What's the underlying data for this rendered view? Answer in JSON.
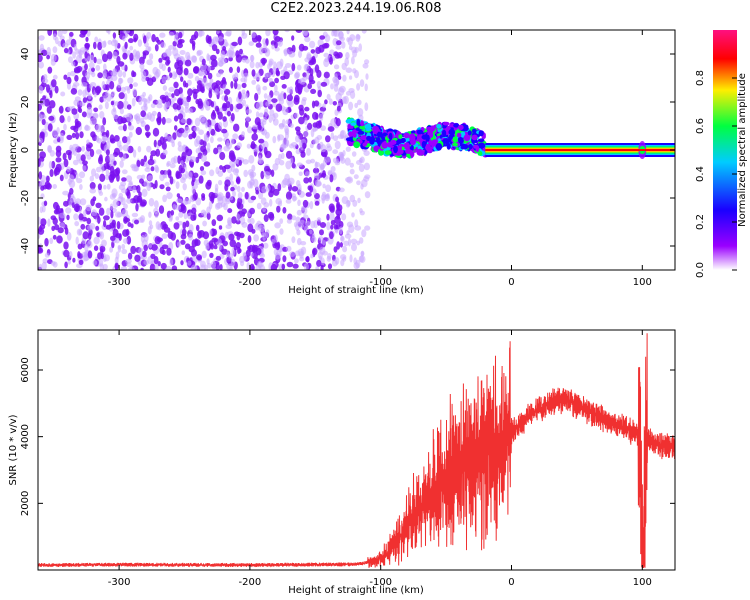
{
  "title": "C2E2.2023.244.19.06.R08",
  "chart_data": [
    {
      "type": "heatmap",
      "name": "spectrogram",
      "xlabel": "Height of straight line (km)",
      "ylabel": "Frequency (Hz)",
      "xlim": [
        -362,
        125
      ],
      "ylim": [
        -50,
        50
      ],
      "xticks": [
        -300,
        -200,
        -100,
        0,
        100
      ],
      "yticks": [
        -40,
        -20,
        0,
        20,
        40
      ],
      "colorbar": {
        "label": "Normalized spectral amplitude",
        "range": [
          0,
          1
        ],
        "ticks": [
          "0.0",
          "0.2",
          "0.4",
          "0.6",
          "0.8"
        ],
        "colormap": [
          "#ffffff",
          "#9a00ff",
          "#1a00ff",
          "#00ccff",
          "#00ff40",
          "#ffee00",
          "#ff0000",
          "#ff1080"
        ]
      },
      "regions": [
        {
          "description": "noise",
          "x_range": [
            -362,
            -130
          ],
          "freq_range": [
            -50,
            50
          ],
          "amplitude": 0.25
        },
        {
          "description": "noise-fade",
          "x_range": [
            -130,
            -110
          ],
          "freq_range": [
            -50,
            50
          ],
          "amplitude": 0.1
        },
        {
          "description": "signal",
          "x_range": [
            -125,
            -20
          ],
          "center_freq": [
            8,
            6,
            3,
            2,
            4,
            6,
            5,
            2
          ],
          "amplitude": 0.5
        },
        {
          "description": "carrier",
          "x_range": [
            -20,
            125
          ],
          "center_freq": 0,
          "amplitude": 0.95
        }
      ]
    },
    {
      "type": "line",
      "name": "snr",
      "xlabel": "Height of straight line (km)",
      "ylabel": "SNR (10 * v/v)",
      "xlim": [
        -362,
        125
      ],
      "ylim": [
        0,
        7200
      ],
      "xticks": [
        -300,
        -200,
        -100,
        0,
        100
      ],
      "yticks": [
        2000,
        4000,
        6000
      ],
      "color": "#f03030",
      "series": [
        {
          "x": [
            -362,
            -300,
            -200,
            -120,
            -105,
            -95,
            -85,
            -75,
            -65,
            -55,
            -45,
            -35,
            -25,
            -15,
            -5,
            5,
            15,
            25,
            35,
            45,
            60,
            75,
            90,
            98,
            100,
            103,
            110,
            125
          ],
          "y": [
            150,
            160,
            150,
            170,
            250,
            500,
            1000,
            1600,
            2100,
            2500,
            2900,
            3200,
            3500,
            3700,
            3800,
            4300,
            4700,
            4900,
            5100,
            5050,
            4750,
            4450,
            4200,
            4000,
            200,
            3900,
            3800,
            3700
          ]
        }
      ]
    }
  ]
}
